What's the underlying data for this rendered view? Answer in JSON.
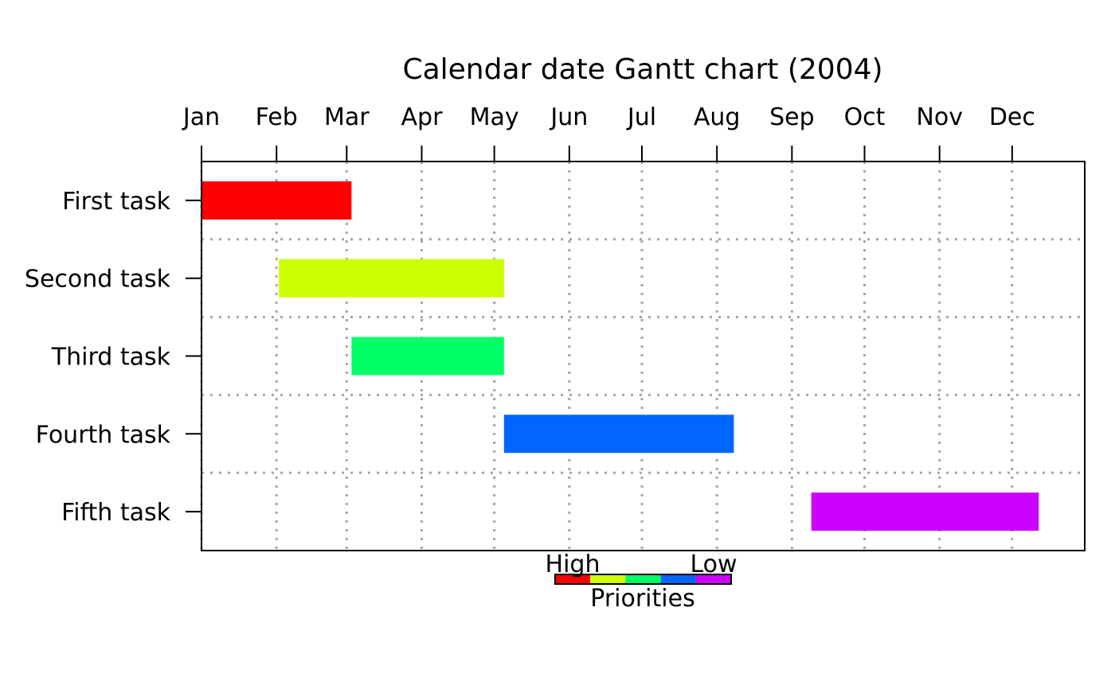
{
  "chart_data": {
    "type": "gantt",
    "title": "Calendar date Gantt chart (2004)",
    "x_type": "date",
    "x_range": [
      "2004-01-01",
      "2004-12-31"
    ],
    "x_tick_labels": [
      "Jan",
      "Feb",
      "Mar",
      "Apr",
      "May",
      "Jun",
      "Jul",
      "Aug",
      "Sep",
      "Oct",
      "Nov",
      "Dec"
    ],
    "x_tick_dates": [
      "2004-01-01",
      "2004-02-01",
      "2004-03-01",
      "2004-04-01",
      "2004-05-01",
      "2004-06-01",
      "2004-07-01",
      "2004-08-01",
      "2004-09-01",
      "2004-10-01",
      "2004-11-01",
      "2004-12-01"
    ],
    "grid": true,
    "tasks": [
      {
        "label": "First task",
        "start": "2004-01-01",
        "end": "2004-03-03",
        "priority": 1,
        "color": "#ff0000"
      },
      {
        "label": "Second task",
        "start": "2004-02-02",
        "end": "2004-05-05",
        "priority": 2,
        "color": "#ccff00"
      },
      {
        "label": "Third task",
        "start": "2004-03-03",
        "end": "2004-05-05",
        "priority": 3,
        "color": "#00ff66"
      },
      {
        "label": "Fourth task",
        "start": "2004-05-05",
        "end": "2004-08-08",
        "priority": 4,
        "color": "#0066ff"
      },
      {
        "label": "Fifth task",
        "start": "2004-09-09",
        "end": "2004-12-12",
        "priority": 5,
        "color": "#cc00ff"
      }
    ],
    "legend": {
      "position": "bottom-center",
      "high_label": "High",
      "low_label": "Low",
      "title": "Priorities",
      "colors": [
        "#ff0000",
        "#ccff00",
        "#00ff66",
        "#0066ff",
        "#cc00ff"
      ]
    }
  }
}
